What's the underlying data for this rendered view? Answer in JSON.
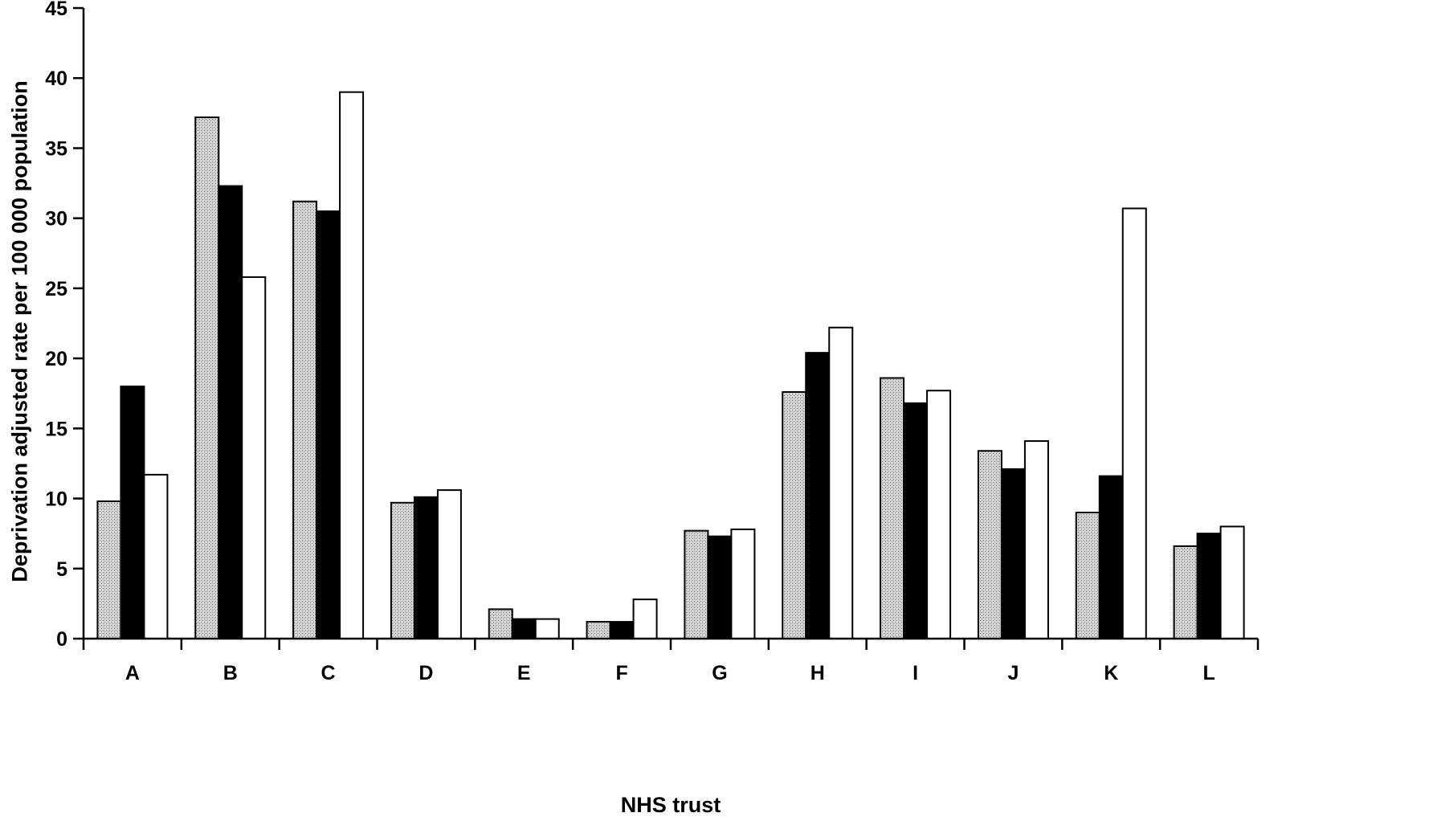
{
  "chart_data": {
    "type": "bar",
    "title": "",
    "xlabel": "NHS trust",
    "ylabel": "Deprivation adjusted rate per 100 000 population",
    "ylim": [
      0,
      45
    ],
    "yticks": [
      0,
      5,
      10,
      15,
      20,
      25,
      30,
      35,
      40,
      45
    ],
    "categories": [
      "A",
      "B",
      "C",
      "D",
      "E",
      "F",
      "G",
      "H",
      "I",
      "J",
      "K",
      "L"
    ],
    "grid": false,
    "legend": "none",
    "series": [
      {
        "fill": "#c8c8c8",
        "pattern": "stippled",
        "values": [
          9.8,
          37.2,
          31.2,
          9.7,
          2.1,
          1.2,
          7.7,
          17.6,
          18.6,
          13.4,
          9.0,
          6.6
        ]
      },
      {
        "fill": "#000000",
        "pattern": "solid",
        "values": [
          18.0,
          32.3,
          30.5,
          10.1,
          1.4,
          1.2,
          7.3,
          20.4,
          16.8,
          12.1,
          11.6,
          7.5
        ]
      },
      {
        "fill": "#ffffff",
        "pattern": "solid",
        "values": [
          11.7,
          25.8,
          39.0,
          10.6,
          1.4,
          2.8,
          7.8,
          22.2,
          17.7,
          14.1,
          30.7,
          8.0
        ]
      }
    ]
  }
}
